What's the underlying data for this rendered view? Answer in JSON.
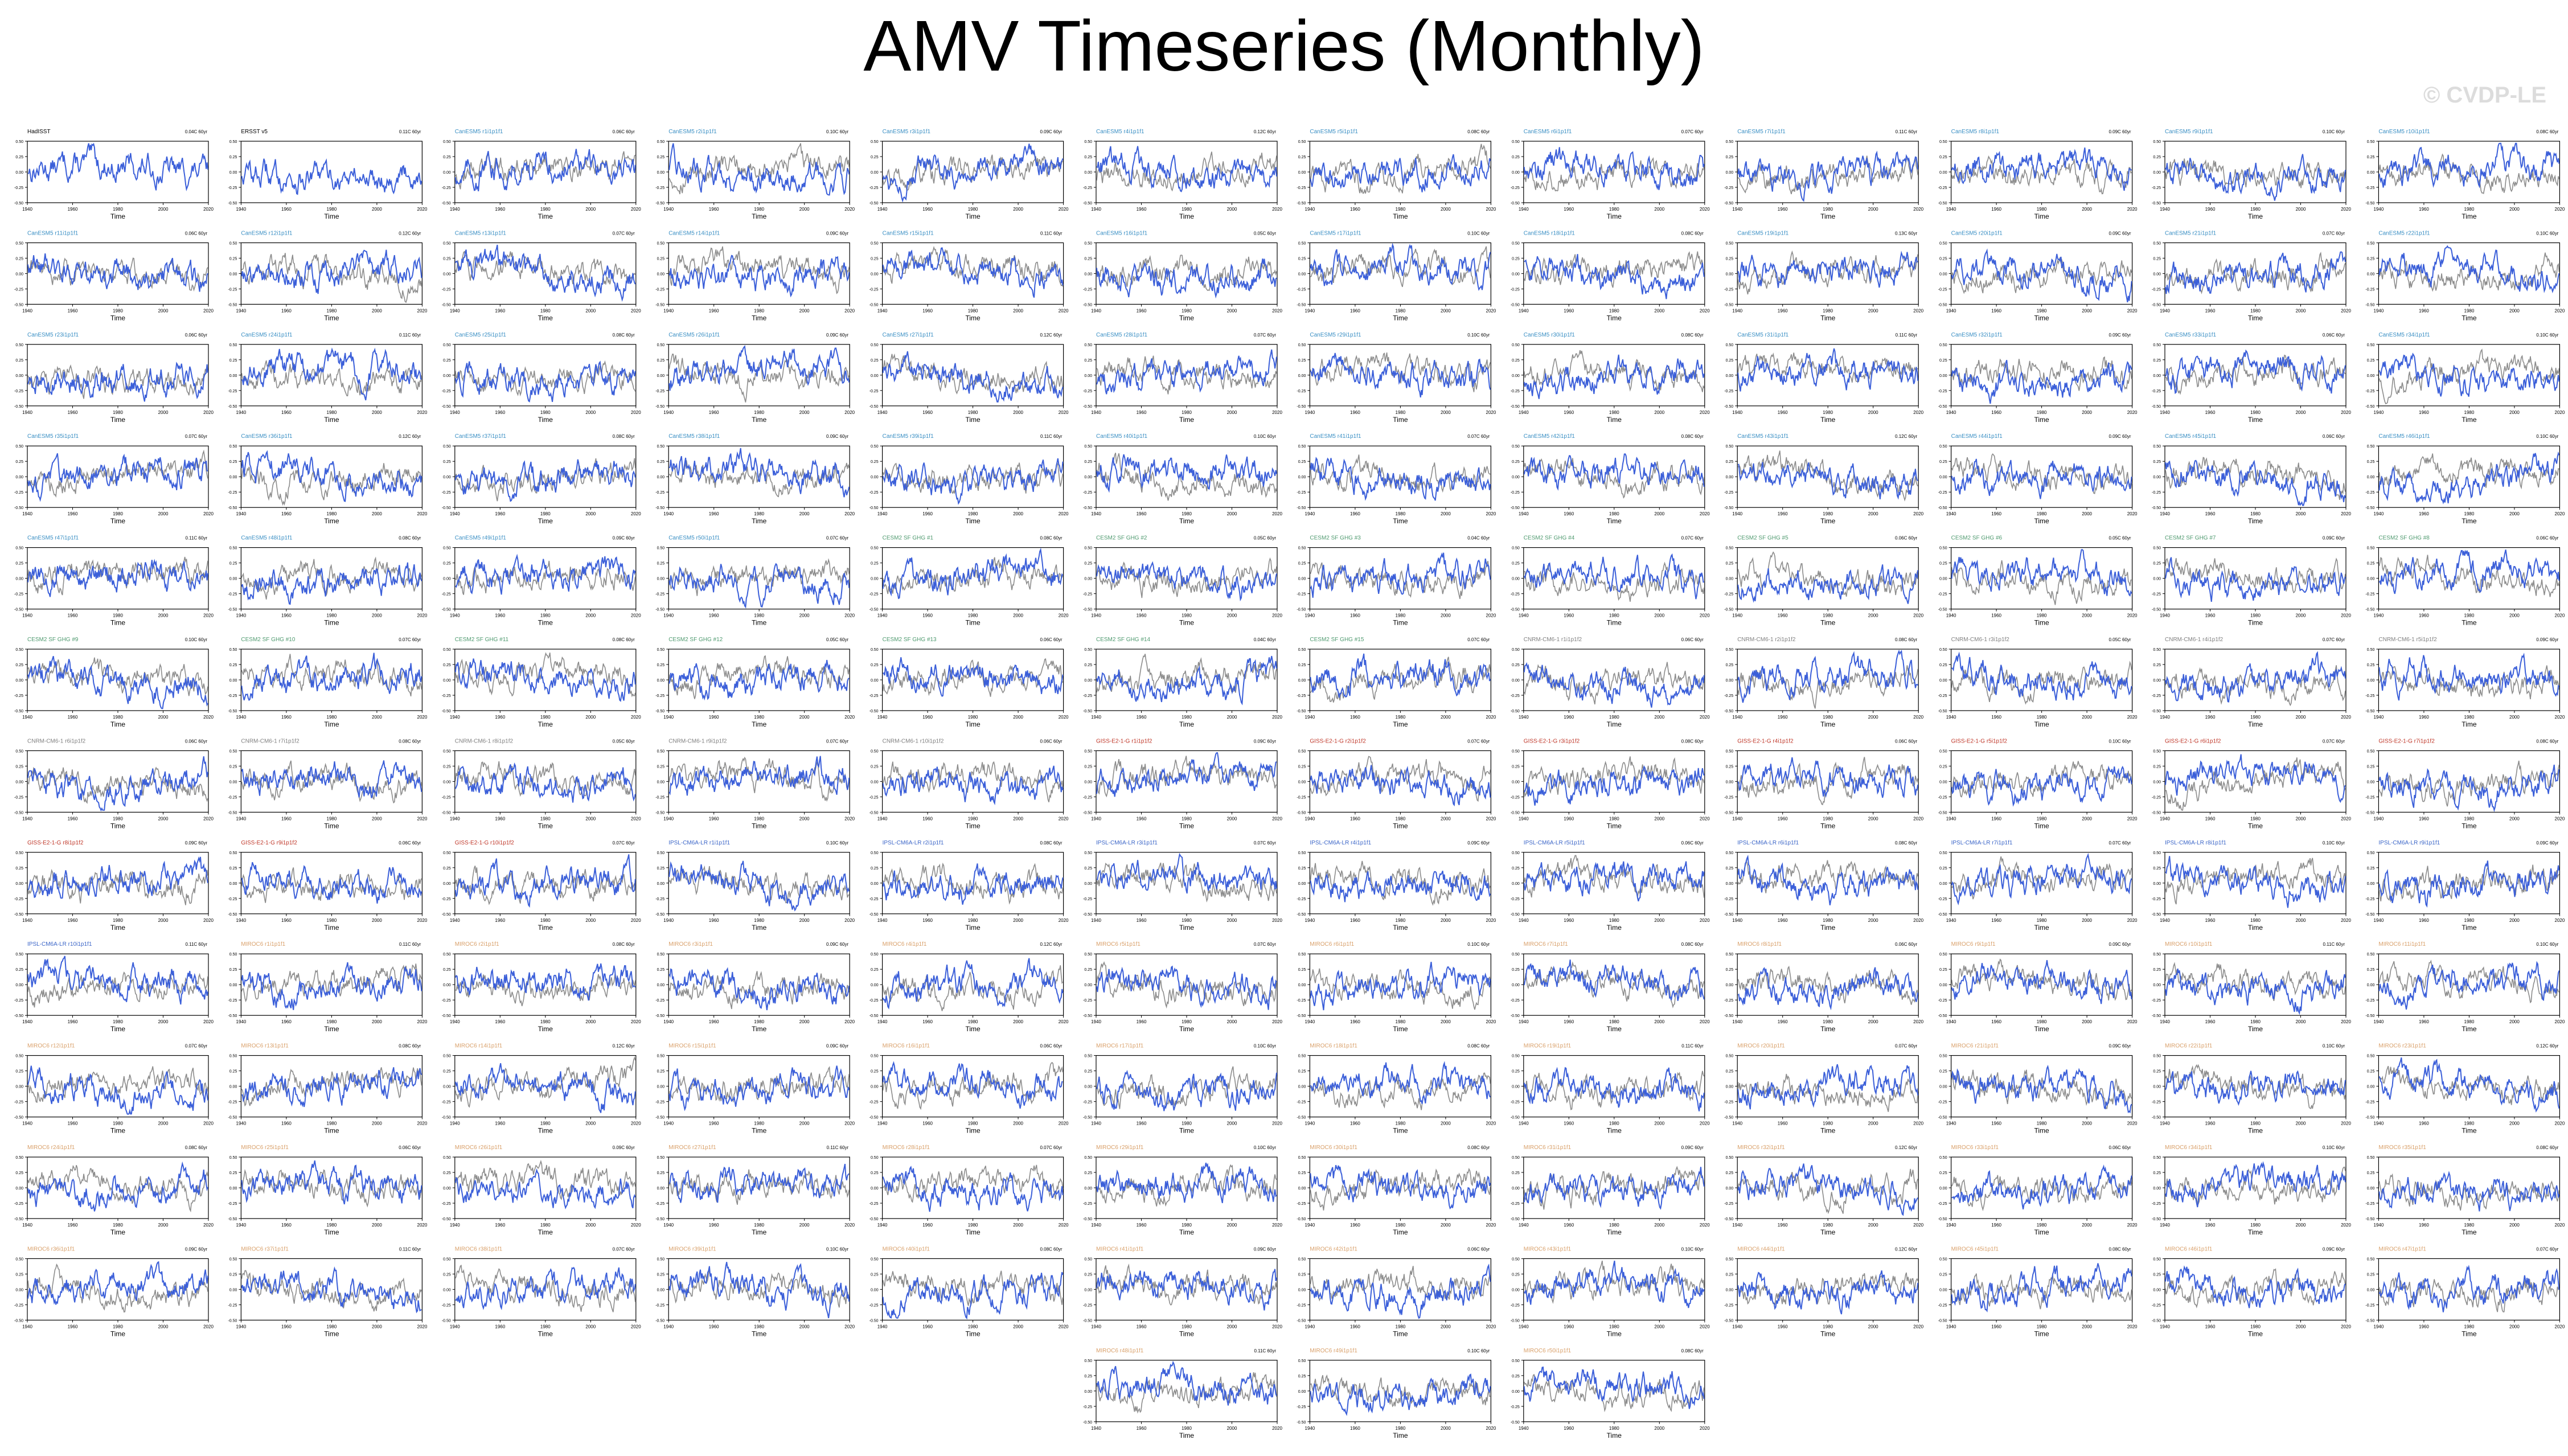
{
  "title": "AMV Timeseries (Monthly)",
  "watermark": "© CVDP-LE",
  "axis_xlabel": "Time",
  "x_ticks": [
    "1940",
    "1960",
    "1980",
    "2000",
    "2020"
  ],
  "y_ticks": [
    "0.50",
    "0.25",
    "0.00",
    "-0.25",
    "-0.50"
  ],
  "colors": {
    "model_line": "#3b5fd9",
    "observed_line": "#8c8c8c",
    "obs_title": "#000000",
    "CanESM5": "#3a8fc4",
    "CESM2": "#4f9a6f",
    "CNRM": "#808080",
    "GISS": "#c0392b",
    "IPSL": "#3c66c8",
    "MIROC6": "#d9a06a"
  },
  "chart_data": {
    "type": "line",
    "layout": "small-multiples",
    "x_range": [
      1940,
      2020
    ],
    "ylim": [
      -0.5,
      0.5
    ],
    "xlabel": "Time",
    "panels": [
      {
        "title": "HadISST",
        "group": "obs",
        "stat": "0.04C 60yr"
      },
      {
        "title": "ERSST v5",
        "group": "obs",
        "stat": "0.11C 60yr"
      },
      {
        "title": "CanESM5 r1i1p1f1",
        "group": "CanESM5",
        "stat": "0.06C 60yr"
      },
      {
        "title": "CanESM5 r2i1p1f1",
        "group": "CanESM5",
        "stat": "0.10C 60yr"
      },
      {
        "title": "CanESM5 r3i1p1f1",
        "group": "CanESM5",
        "stat": "0.09C 60yr"
      },
      {
        "title": "CanESM5 r4i1p1f1",
        "group": "CanESM5",
        "stat": "0.12C 60yr"
      },
      {
        "title": "CanESM5 r5i1p1f1",
        "group": "CanESM5",
        "stat": "0.08C 60yr"
      },
      {
        "title": "CanESM5 r6i1p1f1",
        "group": "CanESM5",
        "stat": "0.07C 60yr"
      },
      {
        "title": "CanESM5 r7i1p1f1",
        "group": "CanESM5",
        "stat": "0.11C 60yr"
      },
      {
        "title": "CanESM5 r8i1p1f1",
        "group": "CanESM5",
        "stat": "0.09C 60yr"
      },
      {
        "title": "CanESM5 r9i1p1f1",
        "group": "CanESM5",
        "stat": "0.10C 60yr"
      },
      {
        "title": "CanESM5 r10i1p1f1",
        "group": "CanESM5",
        "stat": "0.08C 60yr"
      },
      {
        "title": "CanESM5 r11i1p1f1",
        "group": "CanESM5",
        "stat": "0.06C 60yr"
      },
      {
        "title": "CanESM5 r12i1p1f1",
        "group": "CanESM5",
        "stat": "0.12C 60yr"
      },
      {
        "title": "CanESM5 r13i1p1f1",
        "group": "CanESM5",
        "stat": "0.07C 60yr"
      },
      {
        "title": "CanESM5 r14i1p1f1",
        "group": "CanESM5",
        "stat": "0.09C 60yr"
      },
      {
        "title": "CanESM5 r15i1p1f1",
        "group": "CanESM5",
        "stat": "0.11C 60yr"
      },
      {
        "title": "CanESM5 r16i1p1f1",
        "group": "CanESM5",
        "stat": "0.05C 60yr"
      },
      {
        "title": "CanESM5 r17i1p1f1",
        "group": "CanESM5",
        "stat": "0.10C 60yr"
      },
      {
        "title": "CanESM5 r18i1p1f1",
        "group": "CanESM5",
        "stat": "0.08C 60yr"
      },
      {
        "title": "CanESM5 r19i1p1f1",
        "group": "CanESM5",
        "stat": "0.13C 60yr"
      },
      {
        "title": "CanESM5 r20i1p1f1",
        "group": "CanESM5",
        "stat": "0.09C 60yr"
      },
      {
        "title": "CanESM5 r21i1p1f1",
        "group": "CanESM5",
        "stat": "0.07C 60yr"
      },
      {
        "title": "CanESM5 r22i1p1f1",
        "group": "CanESM5",
        "stat": "0.10C 60yr"
      },
      {
        "title": "CanESM5 r23i1p1f1",
        "group": "CanESM5",
        "stat": "0.06C 60yr"
      },
      {
        "title": "CanESM5 r24i1p1f1",
        "group": "CanESM5",
        "stat": "0.11C 60yr"
      },
      {
        "title": "CanESM5 r25i1p1f1",
        "group": "CanESM5",
        "stat": "0.08C 60yr"
      },
      {
        "title": "CanESM5 r26i1p1f1",
        "group": "CanESM5",
        "stat": "0.09C 60yr"
      },
      {
        "title": "CanESM5 r27i1p1f1",
        "group": "CanESM5",
        "stat": "0.12C 60yr"
      },
      {
        "title": "CanESM5 r28i1p1f1",
        "group": "CanESM5",
        "stat": "0.07C 60yr"
      },
      {
        "title": "CanESM5 r29i1p1f1",
        "group": "CanESM5",
        "stat": "0.10C 60yr"
      },
      {
        "title": "CanESM5 r30i1p1f1",
        "group": "CanESM5",
        "stat": "0.08C 60yr"
      },
      {
        "title": "CanESM5 r31i1p1f1",
        "group": "CanESM5",
        "stat": "0.11C 60yr"
      },
      {
        "title": "CanESM5 r32i1p1f1",
        "group": "CanESM5",
        "stat": "0.09C 60yr"
      },
      {
        "title": "CanESM5 r33i1p1f1",
        "group": "CanESM5",
        "stat": "0.06C 60yr"
      },
      {
        "title": "CanESM5 r34i1p1f1",
        "group": "CanESM5",
        "stat": "0.10C 60yr"
      },
      {
        "title": "CanESM5 r35i1p1f1",
        "group": "CanESM5",
        "stat": "0.07C 60yr"
      },
      {
        "title": "CanESM5 r36i1p1f1",
        "group": "CanESM5",
        "stat": "0.12C 60yr"
      },
      {
        "title": "CanESM5 r37i1p1f1",
        "group": "CanESM5",
        "stat": "0.08C 60yr"
      },
      {
        "title": "CanESM5 r38i1p1f1",
        "group": "CanESM5",
        "stat": "0.09C 60yr"
      },
      {
        "title": "CanESM5 r39i1p1f1",
        "group": "CanESM5",
        "stat": "0.11C 60yr"
      },
      {
        "title": "CanESM5 r40i1p1f1",
        "group": "CanESM5",
        "stat": "0.10C 60yr"
      },
      {
        "title": "CanESM5 r41i1p1f1",
        "group": "CanESM5",
        "stat": "0.07C 60yr"
      },
      {
        "title": "CanESM5 r42i1p1f1",
        "group": "CanESM5",
        "stat": "0.08C 60yr"
      },
      {
        "title": "CanESM5 r43i1p1f1",
        "group": "CanESM5",
        "stat": "0.12C 60yr"
      },
      {
        "title": "CanESM5 r44i1p1f1",
        "group": "CanESM5",
        "stat": "0.09C 60yr"
      },
      {
        "title": "CanESM5 r45i1p1f1",
        "group": "CanESM5",
        "stat": "0.06C 60yr"
      },
      {
        "title": "CanESM5 r46i1p1f1",
        "group": "CanESM5",
        "stat": "0.10C 60yr"
      },
      {
        "title": "CanESM5 r47i1p1f1",
        "group": "CanESM5",
        "stat": "0.11C 60yr"
      },
      {
        "title": "CanESM5 r48i1p1f1",
        "group": "CanESM5",
        "stat": "0.08C 60yr"
      },
      {
        "title": "CanESM5 r49i1p1f1",
        "group": "CanESM5",
        "stat": "0.09C 60yr"
      },
      {
        "title": "CanESM5 r50i1p1f1",
        "group": "CanESM5",
        "stat": "0.07C 60yr"
      },
      {
        "title": "CESM2 SF GHG #1",
        "group": "CESM2",
        "stat": "0.08C 60yr"
      },
      {
        "title": "CESM2 SF GHG #2",
        "group": "CESM2",
        "stat": "0.05C 60yr"
      },
      {
        "title": "CESM2 SF GHG #3",
        "group": "CESM2",
        "stat": "0.04C 60yr"
      },
      {
        "title": "CESM2 SF GHG #4",
        "group": "CESM2",
        "stat": "0.07C 60yr"
      },
      {
        "title": "CESM2 SF GHG #5",
        "group": "CESM2",
        "stat": "0.06C 60yr"
      },
      {
        "title": "CESM2 SF GHG #6",
        "group": "CESM2",
        "stat": "0.05C 60yr"
      },
      {
        "title": "CESM2 SF GHG #7",
        "group": "CESM2",
        "stat": "0.09C 60yr"
      },
      {
        "title": "CESM2 SF GHG #8",
        "group": "CESM2",
        "stat": "0.06C 60yr"
      },
      {
        "title": "CESM2 SF GHG #9",
        "group": "CESM2",
        "stat": "0.10C 60yr"
      },
      {
        "title": "CESM2 SF GHG #10",
        "group": "CESM2",
        "stat": "0.07C 60yr"
      },
      {
        "title": "CESM2 SF GHG #11",
        "group": "CESM2",
        "stat": "0.08C 60yr"
      },
      {
        "title": "CESM2 SF GHG #12",
        "group": "CESM2",
        "stat": "0.05C 60yr"
      },
      {
        "title": "CESM2 SF GHG #13",
        "group": "CESM2",
        "stat": "0.06C 60yr"
      },
      {
        "title": "CESM2 SF GHG #14",
        "group": "CESM2",
        "stat": "0.04C 60yr"
      },
      {
        "title": "CESM2 SF GHG #15",
        "group": "CESM2",
        "stat": "0.07C 60yr"
      },
      {
        "title": "CNRM-CM6-1 r1i1p1f2",
        "group": "CNRM",
        "stat": "0.06C 60yr"
      },
      {
        "title": "CNRM-CM6-1 r2i1p1f2",
        "group": "CNRM",
        "stat": "0.08C 60yr"
      },
      {
        "title": "CNRM-CM6-1 r3i1p1f2",
        "group": "CNRM",
        "stat": "0.05C 60yr"
      },
      {
        "title": "CNRM-CM6-1 r4i1p1f2",
        "group": "CNRM",
        "stat": "0.07C 60yr"
      },
      {
        "title": "CNRM-CM6-1 r5i1p1f2",
        "group": "CNRM",
        "stat": "0.09C 60yr"
      },
      {
        "title": "CNRM-CM6-1 r6i1p1f2",
        "group": "CNRM",
        "stat": "0.06C 60yr"
      },
      {
        "title": "CNRM-CM6-1 r7i1p1f2",
        "group": "CNRM",
        "stat": "0.08C 60yr"
      },
      {
        "title": "CNRM-CM6-1 r8i1p1f2",
        "group": "CNRM",
        "stat": "0.05C 60yr"
      },
      {
        "title": "CNRM-CM6-1 r9i1p1f2",
        "group": "CNRM",
        "stat": "0.07C 60yr"
      },
      {
        "title": "CNRM-CM6-1 r10i1p1f2",
        "group": "CNRM",
        "stat": "0.06C 60yr"
      },
      {
        "title": "GISS-E2-1-G r1i1p1f2",
        "group": "GISS",
        "stat": "0.09C 60yr"
      },
      {
        "title": "GISS-E2-1-G r2i1p1f2",
        "group": "GISS",
        "stat": "0.07C 60yr"
      },
      {
        "title": "GISS-E2-1-G r3i1p1f2",
        "group": "GISS",
        "stat": "0.08C 60yr"
      },
      {
        "title": "GISS-E2-1-G r4i1p1f2",
        "group": "GISS",
        "stat": "0.06C 60yr"
      },
      {
        "title": "GISS-E2-1-G r5i1p1f2",
        "group": "GISS",
        "stat": "0.10C 60yr"
      },
      {
        "title": "GISS-E2-1-G r6i1p1f2",
        "group": "GISS",
        "stat": "0.07C 60yr"
      },
      {
        "title": "GISS-E2-1-G r7i1p1f2",
        "group": "GISS",
        "stat": "0.08C 60yr"
      },
      {
        "title": "GISS-E2-1-G r8i1p1f2",
        "group": "GISS",
        "stat": "0.09C 60yr"
      },
      {
        "title": "GISS-E2-1-G r9i1p1f2",
        "group": "GISS",
        "stat": "0.06C 60yr"
      },
      {
        "title": "GISS-E2-1-G r10i1p1f2",
        "group": "GISS",
        "stat": "0.07C 60yr"
      },
      {
        "title": "IPSL-CM6A-LR r1i1p1f1",
        "group": "IPSL",
        "stat": "0.10C 60yr"
      },
      {
        "title": "IPSL-CM6A-LR r2i1p1f1",
        "group": "IPSL",
        "stat": "0.08C 60yr"
      },
      {
        "title": "IPSL-CM6A-LR r3i1p1f1",
        "group": "IPSL",
        "stat": "0.07C 60yr"
      },
      {
        "title": "IPSL-CM6A-LR r4i1p1f1",
        "group": "IPSL",
        "stat": "0.09C 60yr"
      },
      {
        "title": "IPSL-CM6A-LR r5i1p1f1",
        "group": "IPSL",
        "stat": "0.06C 60yr"
      },
      {
        "title": "IPSL-CM6A-LR r6i1p1f1",
        "group": "IPSL",
        "stat": "0.08C 60yr"
      },
      {
        "title": "IPSL-CM6A-LR r7i1p1f1",
        "group": "IPSL",
        "stat": "0.07C 60yr"
      },
      {
        "title": "IPSL-CM6A-LR r8i1p1f1",
        "group": "IPSL",
        "stat": "0.10C 60yr"
      },
      {
        "title": "IPSL-CM6A-LR r9i1p1f1",
        "group": "IPSL",
        "stat": "0.09C 60yr"
      },
      {
        "title": "IPSL-CM6A-LR r10i1p1f1",
        "group": "IPSL",
        "stat": "0.11C 60yr"
      },
      {
        "title": "MIROC6 r1i1p1f1",
        "group": "MIROC6",
        "stat": "0.11C 60yr"
      },
      {
        "title": "MIROC6 r2i1p1f1",
        "group": "MIROC6",
        "stat": "0.08C 60yr"
      },
      {
        "title": "MIROC6 r3i1p1f1",
        "group": "MIROC6",
        "stat": "0.09C 60yr"
      },
      {
        "title": "MIROC6 r4i1p1f1",
        "group": "MIROC6",
        "stat": "0.12C 60yr"
      },
      {
        "title": "MIROC6 r5i1p1f1",
        "group": "MIROC6",
        "stat": "0.07C 60yr"
      },
      {
        "title": "MIROC6 r6i1p1f1",
        "group": "MIROC6",
        "stat": "0.10C 60yr"
      },
      {
        "title": "MIROC6 r7i1p1f1",
        "group": "MIROC6",
        "stat": "0.08C 60yr"
      },
      {
        "title": "MIROC6 r8i1p1f1",
        "group": "MIROC6",
        "stat": "0.06C 60yr"
      },
      {
        "title": "MIROC6 r9i1p1f1",
        "group": "MIROC6",
        "stat": "0.09C 60yr"
      },
      {
        "title": "MIROC6 r10i1p1f1",
        "group": "MIROC6",
        "stat": "0.11C 60yr"
      },
      {
        "title": "MIROC6 r11i1p1f1",
        "group": "MIROC6",
        "stat": "0.10C 60yr"
      },
      {
        "title": "MIROC6 r12i1p1f1",
        "group": "MIROC6",
        "stat": "0.07C 60yr"
      },
      {
        "title": "MIROC6 r13i1p1f1",
        "group": "MIROC6",
        "stat": "0.08C 60yr"
      },
      {
        "title": "MIROC6 r14i1p1f1",
        "group": "MIROC6",
        "stat": "0.12C 60yr"
      },
      {
        "title": "MIROC6 r15i1p1f1",
        "group": "MIROC6",
        "stat": "0.09C 60yr"
      },
      {
        "title": "MIROC6 r16i1p1f1",
        "group": "MIROC6",
        "stat": "0.06C 60yr"
      },
      {
        "title": "MIROC6 r17i1p1f1",
        "group": "MIROC6",
        "stat": "0.10C 60yr"
      },
      {
        "title": "MIROC6 r18i1p1f1",
        "group": "MIROC6",
        "stat": "0.08C 60yr"
      },
      {
        "title": "MIROC6 r19i1p1f1",
        "group": "MIROC6",
        "stat": "0.11C 60yr"
      },
      {
        "title": "MIROC6 r20i1p1f1",
        "group": "MIROC6",
        "stat": "0.07C 60yr"
      },
      {
        "title": "MIROC6 r21i1p1f1",
        "group": "MIROC6",
        "stat": "0.09C 60yr"
      },
      {
        "title": "MIROC6 r22i1p1f1",
        "group": "MIROC6",
        "stat": "0.10C 60yr"
      },
      {
        "title": "MIROC6 r23i1p1f1",
        "group": "MIROC6",
        "stat": "0.12C 60yr"
      },
      {
        "title": "MIROC6 r24i1p1f1",
        "group": "MIROC6",
        "stat": "0.08C 60yr"
      },
      {
        "title": "MIROC6 r25i1p1f1",
        "group": "MIROC6",
        "stat": "0.06C 60yr"
      },
      {
        "title": "MIROC6 r26i1p1f1",
        "group": "MIROC6",
        "stat": "0.09C 60yr"
      },
      {
        "title": "MIROC6 r27i1p1f1",
        "group": "MIROC6",
        "stat": "0.11C 60yr"
      },
      {
        "title": "MIROC6 r28i1p1f1",
        "group": "MIROC6",
        "stat": "0.07C 60yr"
      },
      {
        "title": "MIROC6 r29i1p1f1",
        "group": "MIROC6",
        "stat": "0.10C 60yr"
      },
      {
        "title": "MIROC6 r30i1p1f1",
        "group": "MIROC6",
        "stat": "0.08C 60yr"
      },
      {
        "title": "MIROC6 r31i1p1f1",
        "group": "MIROC6",
        "stat": "0.09C 60yr"
      },
      {
        "title": "MIROC6 r32i1p1f1",
        "group": "MIROC6",
        "stat": "0.12C 60yr"
      },
      {
        "title": "MIROC6 r33i1p1f1",
        "group": "MIROC6",
        "stat": "0.06C 60yr"
      },
      {
        "title": "MIROC6 r34i1p1f1",
        "group": "MIROC6",
        "stat": "0.10C 60yr"
      },
      {
        "title": "MIROC6 r35i1p1f1",
        "group": "MIROC6",
        "stat": "0.08C 60yr"
      },
      {
        "title": "MIROC6 r36i1p1f1",
        "group": "MIROC6",
        "stat": "0.09C 60yr"
      },
      {
        "title": "MIROC6 r37i1p1f1",
        "group": "MIROC6",
        "stat": "0.11C 60yr"
      },
      {
        "title": "MIROC6 r38i1p1f1",
        "group": "MIROC6",
        "stat": "0.07C 60yr"
      },
      {
        "title": "MIROC6 r39i1p1f1",
        "group": "MIROC6",
        "stat": "0.10C 60yr"
      },
      {
        "title": "MIROC6 r40i1p1f1",
        "group": "MIROC6",
        "stat": "0.08C 60yr"
      },
      {
        "title": "MIROC6 r41i1p1f1",
        "group": "MIROC6",
        "stat": "0.09C 60yr"
      },
      {
        "title": "MIROC6 r42i1p1f1",
        "group": "MIROC6",
        "stat": "0.06C 60yr"
      },
      {
        "title": "MIROC6 r43i1p1f1",
        "group": "MIROC6",
        "stat": "0.10C 60yr"
      },
      {
        "title": "MIROC6 r44i1p1f1",
        "group": "MIROC6",
        "stat": "0.12C 60yr"
      },
      {
        "title": "MIROC6 r45i1p1f1",
        "group": "MIROC6",
        "stat": "0.08C 60yr"
      },
      {
        "title": "MIROC6 r46i1p1f1",
        "group": "MIROC6",
        "stat": "0.09C 60yr"
      },
      {
        "title": "MIROC6 r47i1p1f1",
        "group": "MIROC6",
        "stat": "0.07C 60yr"
      },
      {
        "title": "MIROC6 r48i1p1f1",
        "group": "MIROC6",
        "stat": "0.11C 60yr"
      },
      {
        "title": "MIROC6 r49i1p1f1",
        "group": "MIROC6",
        "stat": "0.10C 60yr"
      },
      {
        "title": "MIROC6 r50i1p1f1",
        "group": "MIROC6",
        "stat": "0.08C 60yr"
      }
    ]
  }
}
